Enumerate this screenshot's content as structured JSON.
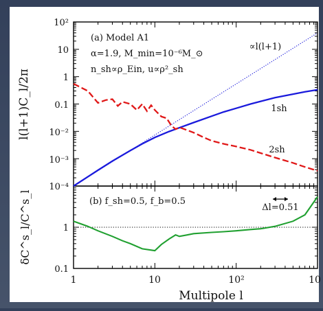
{
  "chart_data": [
    {
      "panel": "(a)",
      "type": "line",
      "annotation": {
        "line1": "(a) Model A1",
        "line2": "α=1.9, M_min=10⁻⁶M_⊙",
        "line3": "n_sh∝ρ_Ein, u∝ρ²_sh"
      },
      "ylabel": "l(l+1)C_l/2π",
      "xscale": "log",
      "yscale": "log",
      "xlim": [
        1,
        1000
      ],
      "ylim": [
        0.0001,
        100
      ],
      "x_ticks": [
        "1",
        "10",
        "10²",
        "10"
      ],
      "y_ticks": [
        "10²",
        "10",
        "1",
        "0.1",
        "10⁻²",
        "10⁻³",
        "10⁻⁴"
      ],
      "series": [
        {
          "name": "1sh",
          "color": "#1a1adc",
          "style": "solid",
          "x": [
            1,
            2,
            3,
            5,
            7,
            10,
            15,
            20,
            30,
            50,
            70,
            100,
            150,
            200,
            300,
            500,
            700,
            1000
          ],
          "y": [
            0.0001,
            0.00038,
            0.00082,
            0.002,
            0.0035,
            0.006,
            0.0099,
            0.0135,
            0.021,
            0.036,
            0.051,
            0.07,
            0.1,
            0.125,
            0.17,
            0.23,
            0.28,
            0.33
          ]
        },
        {
          "name": "2sh",
          "color": "#e01818",
          "style": "dashed",
          "x": [
            1,
            1.5,
            2,
            2.5,
            3,
            3.5,
            4,
            5,
            6,
            7,
            8,
            9,
            10,
            12,
            14,
            16,
            18,
            20,
            25,
            30,
            40,
            50,
            70,
            100,
            150,
            200,
            300,
            500,
            700,
            1000
          ],
          "y": [
            0.55,
            0.3,
            0.11,
            0.14,
            0.15,
            0.085,
            0.12,
            0.1,
            0.06,
            0.1,
            0.055,
            0.09,
            0.06,
            0.035,
            0.03,
            0.016,
            0.012,
            0.014,
            0.011,
            0.009,
            0.006,
            0.0045,
            0.0035,
            0.0028,
            0.0021,
            0.0016,
            0.0011,
            0.0007,
            0.0005,
            0.00036
          ]
        },
        {
          "name": "∝l(l+1)",
          "color": "#1a1adc",
          "style": "dotted",
          "x": [
            1,
            1000
          ],
          "y": [
            0.0001,
            40
          ]
        }
      ],
      "series_labels": [
        "1sh",
        "2sh",
        "∝l(l+1)"
      ]
    },
    {
      "panel": "(b)",
      "type": "line",
      "annotation": "(b) f_sh=0.5, f_b=0.5",
      "arrow_label": "Δl=0.51",
      "ylabel": "δC^s_l/C^s_l",
      "xlabel": "Multipole l",
      "xscale": "log",
      "yscale": "log",
      "xlim": [
        1,
        1000
      ],
      "ylim": [
        0.1,
        10
      ],
      "x_ticks": [
        "1",
        "10",
        "10²",
        "10"
      ],
      "y_ticks": [
        "1",
        "0.1"
      ],
      "reference_line": 1,
      "series": [
        {
          "color": "#20a030",
          "style": "solid",
          "x": [
            1,
            1.5,
            2,
            3,
            4,
            5,
            7,
            10,
            12,
            15,
            18,
            20,
            25,
            30,
            50,
            70,
            100,
            150,
            200,
            300,
            500,
            700,
            1000
          ],
          "y": [
            1.4,
            1.05,
            0.82,
            0.6,
            0.47,
            0.4,
            0.3,
            0.27,
            0.38,
            0.52,
            0.65,
            0.6,
            0.65,
            0.7,
            0.75,
            0.78,
            0.82,
            0.88,
            0.92,
            1.05,
            1.4,
            2.0,
            5.5
          ]
        }
      ]
    }
  ],
  "colors": {
    "background": "#3c4a60",
    "plot_bg": "#ffffff",
    "blue": "#1a1adc",
    "red": "#e01818",
    "green": "#20a030"
  }
}
